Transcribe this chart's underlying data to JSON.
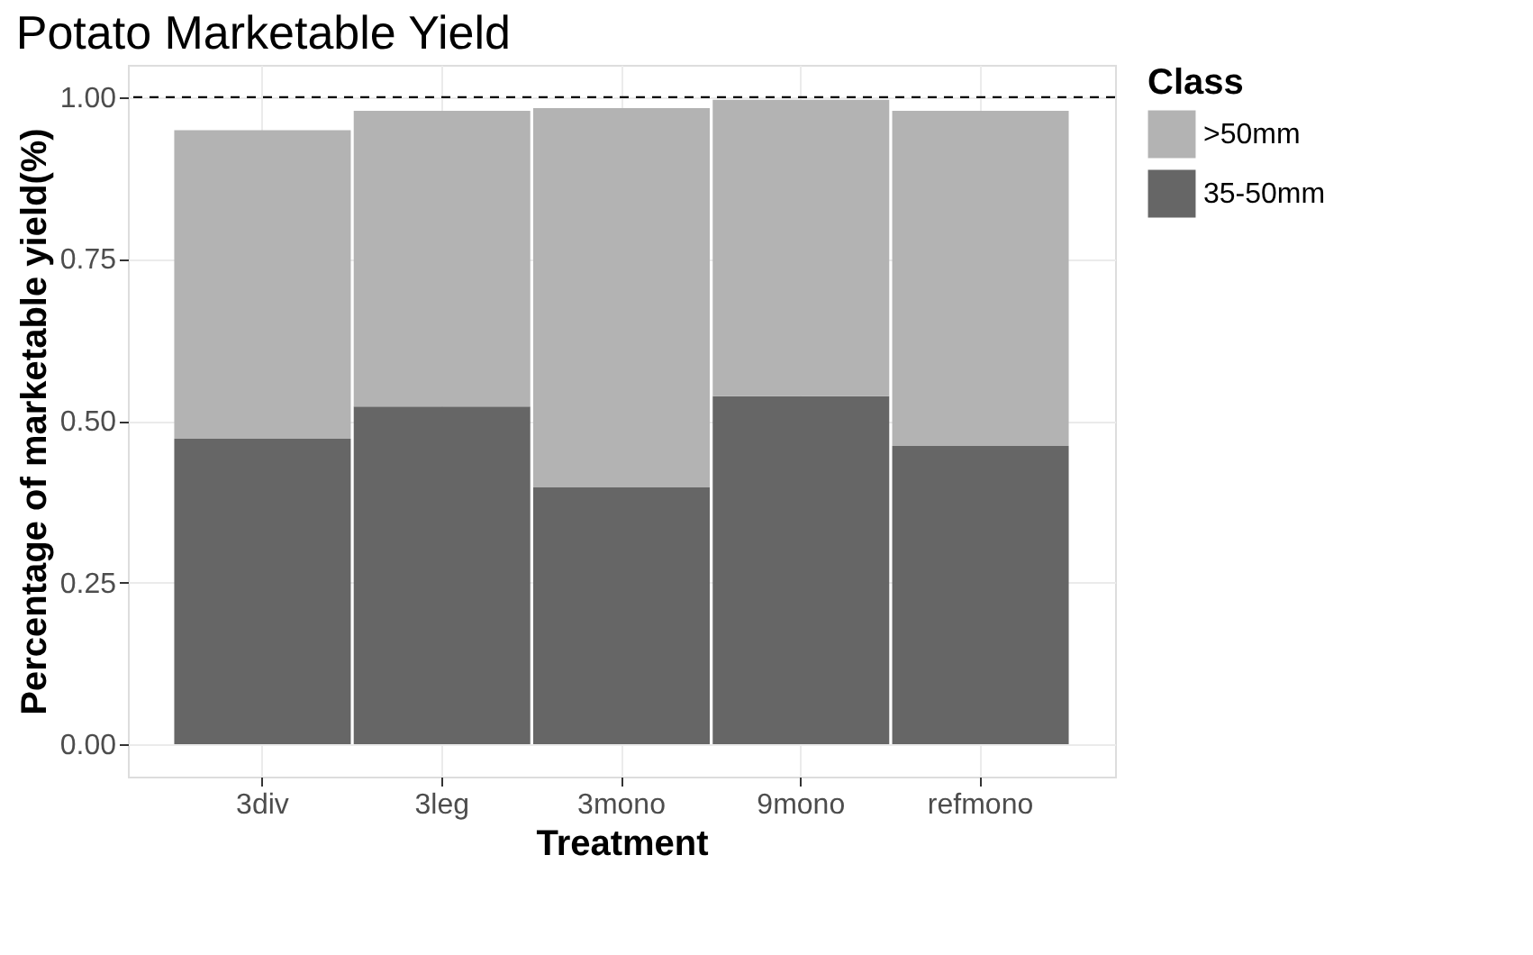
{
  "chart_data": {
    "type": "bar",
    "title": "Potato Marketable Yield",
    "xlabel": "Treatment",
    "ylabel": "Percentage of marketable yield(%)",
    "legend_title": "Class",
    "categories": [
      "3div",
      "3leg",
      "3mono",
      "9mono",
      "refmono"
    ],
    "stacked": true,
    "series": [
      {
        "name": "35-50mm",
        "color": "#666666",
        "values": [
          0.472,
          0.522,
          0.397,
          0.538,
          0.461
        ]
      },
      {
        "name": ">50mm",
        "color": "#b3b3b3",
        "values": [
          0.477,
          0.457,
          0.586,
          0.458,
          0.518
        ]
      }
    ],
    "ylim": [
      -0.05,
      1.05
    ],
    "yticks": [
      {
        "value": 0,
        "label": "0.00"
      },
      {
        "value": 0.25,
        "label": "0.25"
      },
      {
        "value": 0.5,
        "label": "0.50"
      },
      {
        "value": 0.75,
        "label": "0.75"
      },
      {
        "value": 1,
        "label": "1.00"
      }
    ],
    "ref_lines": [
      {
        "axis": "y",
        "value": 1,
        "label": null,
        "color": "#000000",
        "line_style": "dashed"
      }
    ],
    "grid": true,
    "legend": "right"
  }
}
